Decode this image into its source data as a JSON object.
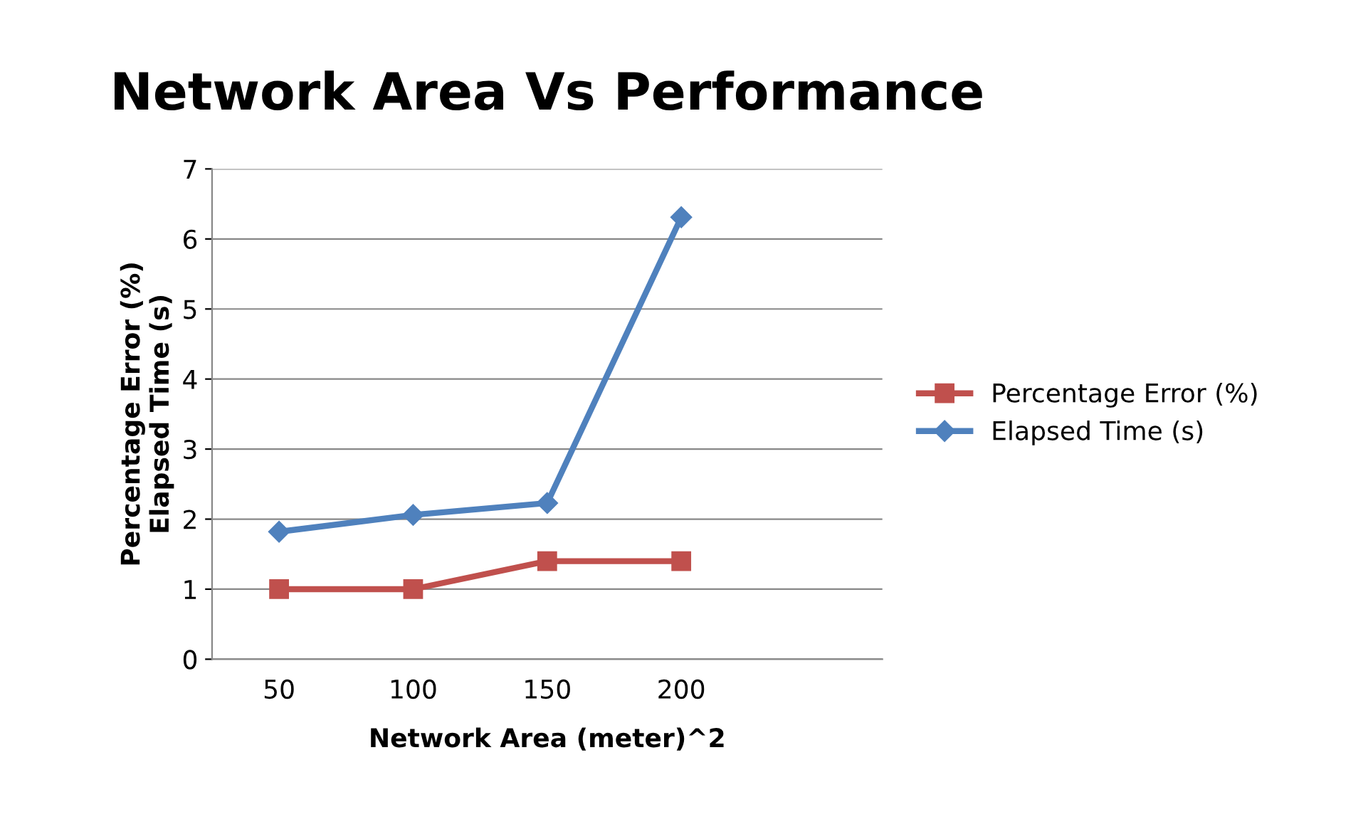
{
  "chart_data": {
    "type": "line",
    "title": "Network Area Vs Performance",
    "xlabel": "Network Area (meter)^2",
    "ylabel": "Percentage Error (%)\nElapsed Time (s)",
    "categories": [
      "50",
      "100",
      "150",
      "200",
      null
    ],
    "series": [
      {
        "name": "Percentage Error (%)",
        "color": "#c0504d",
        "marker": "square",
        "values": [
          1,
          1,
          1.4,
          1.4,
          null
        ]
      },
      {
        "name": "Elapsed Time (s)",
        "color": "#4f81bd",
        "marker": "diamond",
        "values": [
          1.82,
          2.06,
          2.23,
          6.31,
          null
        ]
      }
    ],
    "ylim": [
      0,
      7
    ],
    "yticks": [
      0,
      1,
      2,
      3,
      4,
      5,
      6,
      7
    ],
    "grid": "y",
    "legend": "right",
    "line_style": "solid"
  }
}
